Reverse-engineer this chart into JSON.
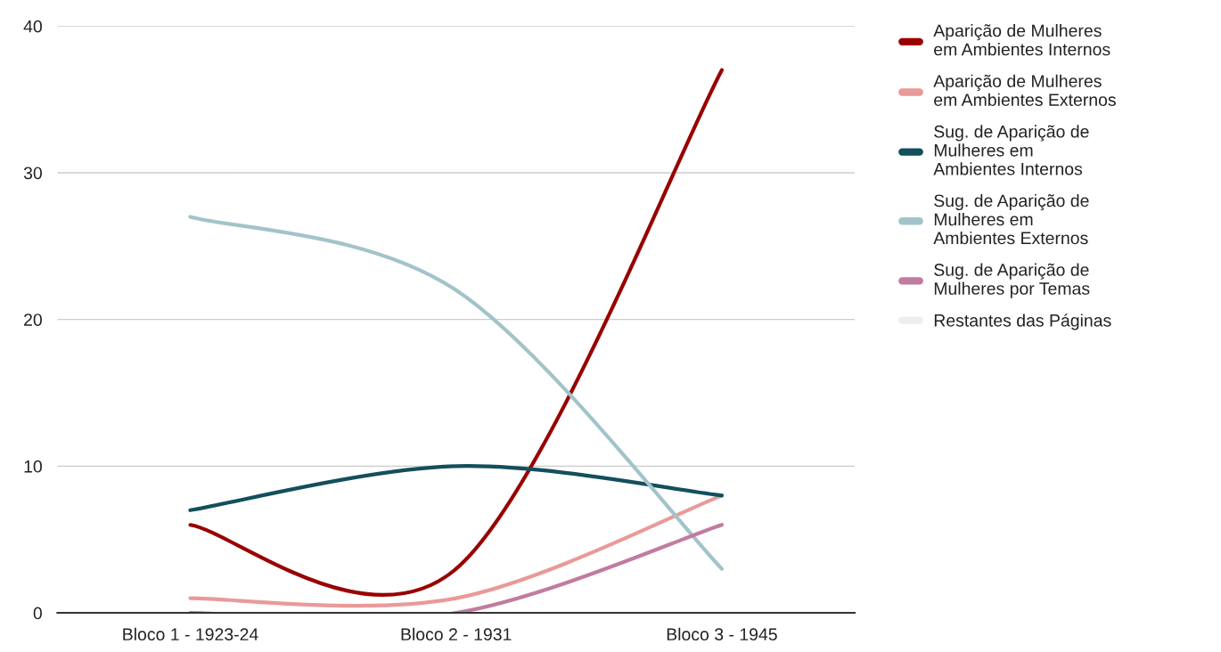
{
  "chart_data": {
    "type": "line",
    "categories": [
      "Bloco 1 - 1923-24",
      "Bloco 2 - 1931",
      "Bloco 3 - 1945"
    ],
    "series": [
      {
        "name": "Aparição de Mulheres\nem Ambientes Internos",
        "color": "#990000",
        "values": [
          6,
          3,
          37
        ]
      },
      {
        "name": "Aparição de Mulheres\nem Ambientes Externos",
        "color": "#ea9999",
        "values": [
          1,
          1,
          8
        ]
      },
      {
        "name": "Sug. de Aparição de\nMulheres em\nAmbientes Internos",
        "color": "#134f5c",
        "values": [
          7,
          10,
          8
        ]
      },
      {
        "name": "Sug. de Aparição de\nMulheres em\nAmbientes Externos",
        "color": "#a2c4c9",
        "values": [
          27,
          22,
          3
        ]
      },
      {
        "name": "Sug. de Aparição de\nMulheres por Temas",
        "color": "#c27ba0",
        "values": [
          0,
          0,
          6
        ]
      },
      {
        "name": "Restantes das Páginas",
        "color": "#eeeeee",
        "values": [
          null,
          null,
          null
        ]
      }
    ],
    "ylim": [
      0,
      40
    ],
    "yticks": [
      0,
      10,
      20,
      30,
      40
    ],
    "grid": "y",
    "legend": "right",
    "marker": "none",
    "line_style": "solid"
  }
}
